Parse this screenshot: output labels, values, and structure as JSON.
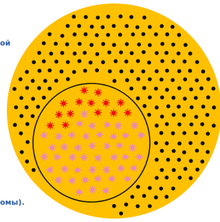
{
  "labels": {
    "top_fragment": "ой",
    "bottom_fragment": "омы)."
  },
  "colors": {
    "background": "#FFFFFF",
    "outer_circle": "#FFC000",
    "small_dots": "#111111",
    "inner_outline": "#111111",
    "red_cells": "#EE1111",
    "pink_cells": "#E889B9",
    "label_text": "#2E5FA8"
  }
}
